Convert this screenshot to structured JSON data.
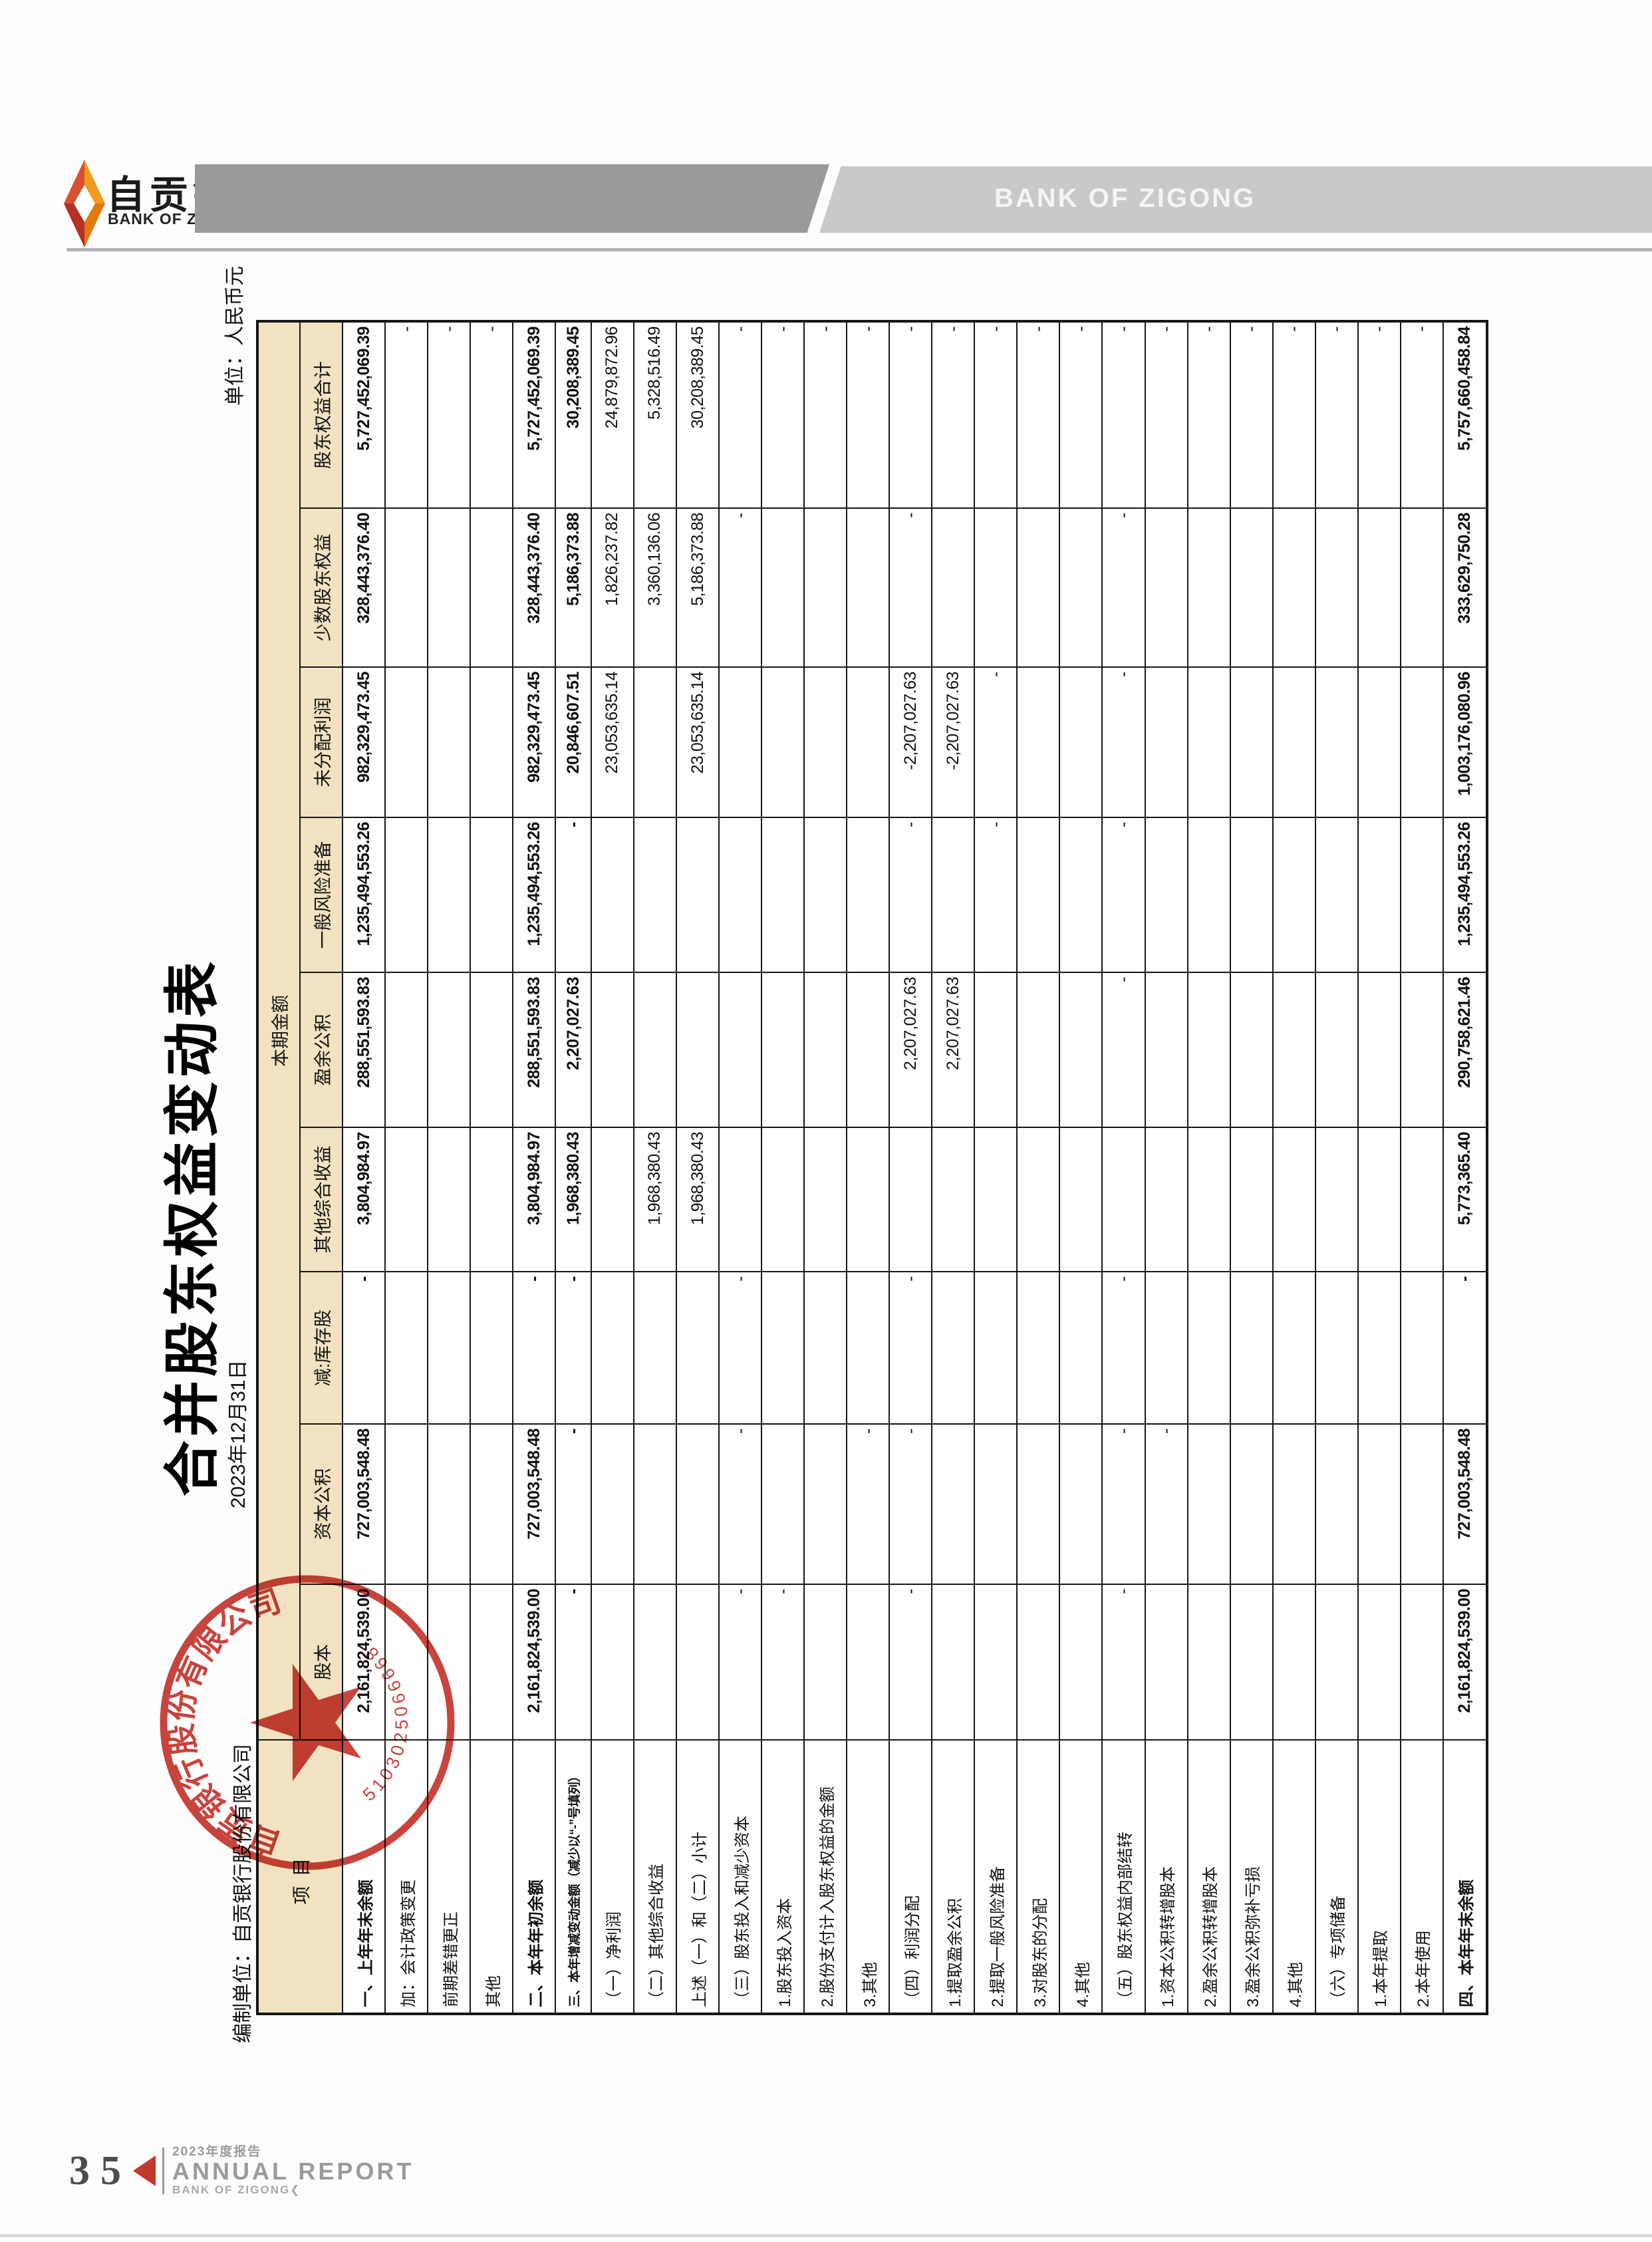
{
  "header": {
    "logo_cn": "自贡银行",
    "logo_en": "BANK OF ZIGONG",
    "banner_text": "BANK OF ZIGONG"
  },
  "doc": {
    "title": "合并股东权益变动表",
    "date": "2023年12月31日",
    "prepared_by": "编制单位：自贡银行股份有限公司",
    "unit": "单位：人民币元"
  },
  "table": {
    "corner_header": "项目",
    "group_header": "本期金额",
    "columns": [
      "股本",
      "资本公积",
      "减:库存股",
      "其他综合收益",
      "盈余公积",
      "一般风险准备",
      "未分配利润",
      "少数股东权益",
      "股东权益合计"
    ],
    "rows": [
      {
        "label": "一、上年年末余额",
        "bold": true,
        "values": [
          "2,161,824,539.00",
          "727,003,548.48",
          "-",
          "3,804,984.97",
          "288,551,593.83",
          "1,235,494,553.26",
          "982,329,473.45",
          "328,443,376.40",
          "5,727,452,069.39"
        ]
      },
      {
        "label": "加：会计政策变更",
        "bold": false,
        "values": [
          "",
          "",
          "",
          "",
          "",
          "",
          "",
          "",
          "-"
        ]
      },
      {
        "label": "前期差错更正",
        "bold": false,
        "values": [
          "",
          "",
          "",
          "",
          "",
          "",
          "",
          "",
          "-"
        ]
      },
      {
        "label": "其他",
        "bold": false,
        "values": [
          "",
          "",
          "",
          "",
          "",
          "",
          "",
          "",
          "-"
        ]
      },
      {
        "label": "二、本年年初余额",
        "bold": true,
        "values": [
          "2,161,824,539.00",
          "727,003,548.48",
          "-",
          "3,804,984.97",
          "288,551,593.83",
          "1,235,494,553.26",
          "982,329,473.45",
          "328,443,376.40",
          "5,727,452,069.39"
        ]
      },
      {
        "label": "三、本年增减变动金额（减少以“-”号填列）",
        "bold": true,
        "small": true,
        "values": [
          "-",
          "-",
          "-",
          "1,968,380.43",
          "2,207,027.63",
          "-",
          "20,846,607.51",
          "5,186,373.88",
          "30,208,389.45"
        ]
      },
      {
        "label": "（一）净利润",
        "bold": false,
        "values": [
          "",
          "",
          "",
          "",
          "",
          "",
          "23,053,635.14",
          "1,826,237.82",
          "24,879,872.96"
        ]
      },
      {
        "label": "（二）其他综合收益",
        "bold": false,
        "values": [
          "",
          "",
          "",
          "1,968,380.43",
          "",
          "",
          "",
          "3,360,136.06",
          "5,328,516.49"
        ]
      },
      {
        "label": "上述（一）和（二）小计",
        "bold": false,
        "values": [
          "",
          "",
          "",
          "1,968,380.43",
          "",
          "",
          "23,053,635.14",
          "5,186,373.88",
          "30,208,389.45"
        ]
      },
      {
        "label": "（三）股东投入和减少资本",
        "bold": false,
        "values": [
          "-",
          "-",
          "-",
          "",
          "",
          "",
          "",
          "-",
          "-"
        ]
      },
      {
        "label": "1.股东投入资本",
        "bold": false,
        "values": [
          "-",
          "",
          "",
          "",
          "",
          "",
          "",
          "",
          "-"
        ]
      },
      {
        "label": "2.股份支付计入股东权益的金额",
        "bold": false,
        "values": [
          "",
          "",
          "",
          "",
          "",
          "",
          "",
          "",
          "-"
        ]
      },
      {
        "label": "3.其他",
        "bold": false,
        "values": [
          "",
          "-",
          "",
          "",
          "",
          "",
          "",
          "",
          "-"
        ]
      },
      {
        "label": "（四）利润分配",
        "bold": false,
        "values": [
          "-",
          "-",
          "-",
          "",
          "2,207,027.63",
          "-",
          "-2,207,027.63",
          "-",
          "-"
        ]
      },
      {
        "label": "1.提取盈余公积",
        "bold": false,
        "values": [
          "",
          "",
          "",
          "",
          "2,207,027.63",
          "",
          "-2,207,027.63",
          "",
          "-"
        ]
      },
      {
        "label": "2.提取一般风险准备",
        "bold": false,
        "values": [
          "",
          "",
          "",
          "",
          "",
          "-",
          "-",
          "",
          "-"
        ]
      },
      {
        "label": "3.对股东的分配",
        "bold": false,
        "values": [
          "",
          "",
          "",
          "",
          "",
          "",
          "",
          "",
          "-"
        ]
      },
      {
        "label": "4.其他",
        "bold": false,
        "values": [
          "",
          "",
          "",
          "",
          "",
          "",
          "",
          "",
          "-"
        ]
      },
      {
        "label": "（五）股东权益内部结转",
        "bold": false,
        "values": [
          "-",
          "-",
          "-",
          "",
          "-",
          "-",
          "-",
          "-",
          "-"
        ]
      },
      {
        "label": "1.资本公积转增股本",
        "bold": false,
        "values": [
          "",
          "-",
          "",
          "",
          "",
          "",
          "",
          "",
          "-"
        ]
      },
      {
        "label": "2.盈余公积转增股本",
        "bold": false,
        "values": [
          "",
          "",
          "",
          "",
          "",
          "",
          "",
          "",
          "-"
        ]
      },
      {
        "label": "3.盈余公积弥补亏损",
        "bold": false,
        "values": [
          "",
          "",
          "",
          "",
          "",
          "",
          "",
          "",
          "-"
        ]
      },
      {
        "label": "4.其他",
        "bold": false,
        "values": [
          "",
          "",
          "",
          "",
          "",
          "",
          "",
          "",
          "-"
        ]
      },
      {
        "label": "（六）专项储备",
        "bold": false,
        "values": [
          "",
          "",
          "",
          "",
          "",
          "",
          "",
          "",
          "-"
        ]
      },
      {
        "label": "1.本年提取",
        "bold": false,
        "values": [
          "",
          "",
          "",
          "",
          "",
          "",
          "",
          "",
          "-"
        ]
      },
      {
        "label": "2.本年使用",
        "bold": false,
        "values": [
          "",
          "",
          "",
          "",
          "",
          "",
          "",
          "",
          "-"
        ]
      },
      {
        "label": "四、本年年末余额",
        "bold": true,
        "values": [
          "2,161,824,539.00",
          "727,003,548.48",
          "-",
          "5,773,365.40",
          "290,758,621.46",
          "1,235,494,553.26",
          "1,003,176,080.96",
          "333,629,750.28",
          "5,757,660,458.84"
        ]
      }
    ]
  },
  "stamp": {
    "company": "自贡银行股份有限公司",
    "serial": "5103025066668"
  },
  "footer": {
    "page": "35",
    "report_year": "2023年度报告",
    "report_en": "ANNUAL REPORT",
    "bank": "BANK OF ZIGONG❮"
  }
}
